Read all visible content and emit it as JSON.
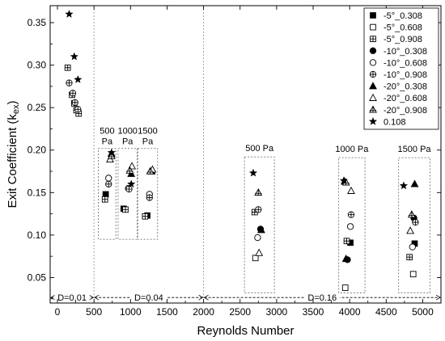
{
  "chart_data": {
    "type": "scatter",
    "xlabel": "Reynolds Number",
    "ylabel_main": "Exit Coefficient (k",
    "ylabel_sub": "ex",
    "ylabel_tail": ")",
    "xlim": [
      -100,
      5250
    ],
    "ylim": [
      0.02,
      0.37
    ],
    "xticks": [
      0,
      500,
      1000,
      1500,
      2000,
      2500,
      3000,
      3500,
      4000,
      4500,
      5000
    ],
    "yticks": [
      0.05,
      0.1,
      0.15,
      0.2,
      0.25,
      0.3,
      0.35
    ],
    "ytick_labels": [
      "0.05",
      "0.10",
      "0.15",
      "0.20",
      "0.25",
      "0.30",
      "0.35"
    ],
    "legend_position": "top-right",
    "series": [
      {
        "name": "-5°_0.308",
        "marker": "square-filled",
        "points": [
          [
            660,
            0.148
          ],
          [
            906,
            0.131
          ],
          [
            1230,
            0.123
          ],
          [
            4010,
            0.091
          ],
          [
            4890,
            0.09
          ]
        ]
      },
      {
        "name": "-5°_0.608",
        "marker": "square-open",
        "points": [
          [
            2710,
            0.073
          ],
          [
            3940,
            0.038
          ],
          [
            4870,
            0.054
          ]
        ]
      },
      {
        "name": "-5°_0.908",
        "marker": "square-plus",
        "points": [
          [
            140,
            0.297
          ],
          [
            200,
            0.265
          ],
          [
            230,
            0.255
          ],
          [
            260,
            0.247
          ],
          [
            290,
            0.243
          ],
          [
            650,
            0.142
          ],
          [
            930,
            0.13
          ],
          [
            1200,
            0.122
          ],
          [
            2700,
            0.127
          ],
          [
            3960,
            0.093
          ],
          [
            4820,
            0.074
          ]
        ]
      },
      {
        "name": "-10°_0.308",
        "marker": "circle-filled",
        "points": [
          [
            2780,
            0.107
          ],
          [
            3970,
            0.071
          ],
          [
            4880,
            0.12
          ]
        ]
      },
      {
        "name": "-10°_0.608",
        "marker": "circle-open",
        "points": [
          [
            700,
            0.167
          ],
          [
            970,
            0.155
          ],
          [
            1260,
            0.148
          ],
          [
            2740,
            0.097
          ],
          [
            4010,
            0.11
          ],
          [
            4860,
            0.086
          ]
        ]
      },
      {
        "name": "-10°_0.908",
        "marker": "circle-plus",
        "points": [
          [
            160,
            0.279
          ],
          [
            210,
            0.267
          ],
          [
            240,
            0.256
          ],
          [
            280,
            0.248
          ],
          [
            700,
            0.16
          ],
          [
            980,
            0.154
          ],
          [
            1260,
            0.144
          ],
          [
            2750,
            0.13
          ],
          [
            4020,
            0.124
          ],
          [
            4900,
            0.115
          ]
        ]
      },
      {
        "name": "-20°_0.308",
        "marker": "triangle-filled",
        "points": [
          [
            740,
            0.196
          ],
          [
            1010,
            0.172
          ],
          [
            1290,
            0.175
          ],
          [
            2790,
            0.106
          ],
          [
            3950,
            0.072
          ],
          [
            3930,
            0.163
          ],
          [
            4890,
            0.16
          ]
        ]
      },
      {
        "name": "-20°_0.608",
        "marker": "triangle-open",
        "points": [
          [
            720,
            0.189
          ],
          [
            1020,
            0.181
          ],
          [
            1300,
            0.177
          ],
          [
            2760,
            0.079
          ],
          [
            4020,
            0.152
          ],
          [
            4830,
            0.105
          ]
        ]
      },
      {
        "name": "-20°_0.908",
        "marker": "triangle-plus",
        "points": [
          [
            740,
            0.193
          ],
          [
            990,
            0.176
          ],
          [
            1270,
            0.175
          ],
          [
            2750,
            0.15
          ],
          [
            3950,
            0.162
          ],
          [
            4850,
            0.124
          ]
        ]
      },
      {
        "name": "0.108",
        "marker": "star",
        "points": [
          [
            160,
            0.36
          ],
          [
            230,
            0.31
          ],
          [
            280,
            0.283
          ],
          [
            740,
            0.197
          ],
          [
            1010,
            0.16
          ],
          [
            2680,
            0.173
          ],
          [
            3920,
            0.164
          ],
          [
            4740,
            0.158
          ]
        ]
      }
    ],
    "group_boxes": [
      {
        "x0": 560,
        "x1": 800,
        "y0": 0.095,
        "y1": 0.202,
        "label_line1": "500",
        "label_line2": "Pa"
      },
      {
        "x0": 830,
        "x1": 1090,
        "y0": 0.095,
        "y1": 0.202,
        "label_line1": "1000",
        "label_line2": "Pa"
      },
      {
        "x0": 1100,
        "x1": 1370,
        "y0": 0.095,
        "y1": 0.202,
        "label_line1": "1500",
        "label_line2": "Pa"
      },
      {
        "x0": 2560,
        "x1": 2970,
        "y0": 0.032,
        "y1": 0.192,
        "label_line1": "500 Pa",
        "label_line2": ""
      },
      {
        "x0": 3850,
        "x1": 4210,
        "y0": 0.032,
        "y1": 0.191,
        "label_line1": "1000 Pa",
        "label_line2": ""
      },
      {
        "x0": 4670,
        "x1": 5100,
        "y0": 0.032,
        "y1": 0.191,
        "label_line1": "1500 Pa",
        "label_line2": ""
      }
    ],
    "region_dividers": [
      500,
      2000
    ],
    "diameter_ranges": [
      {
        "x0": -100,
        "x1": 500,
        "label": "D=0.01"
      },
      {
        "x0": 500,
        "x1": 2000,
        "label": "D=0.04"
      },
      {
        "x0": 2000,
        "x1": 5250,
        "label": "D=0.16"
      }
    ]
  }
}
